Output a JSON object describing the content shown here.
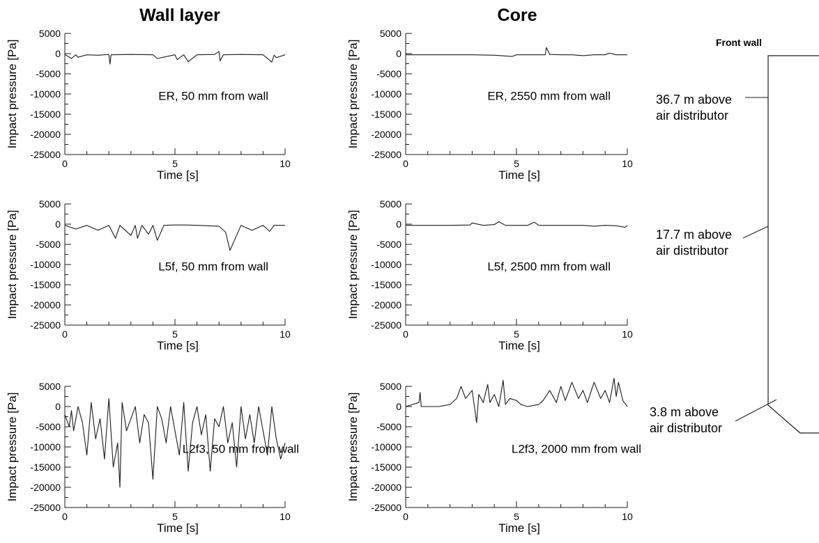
{
  "column_titles": {
    "wall": "Wall layer",
    "core": "Core"
  },
  "furnace": {
    "title": "Front wall",
    "labels": [
      {
        "line1": "36.7 m above",
        "line2": "air distributor"
      },
      {
        "line1": "17.7 m above",
        "line2": "air distributor"
      },
      {
        "line1": "3.8 m above",
        "line2": "air distributor"
      }
    ]
  },
  "chart_data": [
    {
      "type": "line",
      "panel": "wall-1",
      "xlabel": "Time [s]",
      "ylabel": "Impact pressure [Pa]",
      "xlim": [
        0,
        10
      ],
      "ylim": [
        -25000,
        5000
      ],
      "xticks": [
        0,
        5,
        10
      ],
      "yticks": [
        5000,
        0,
        -5000,
        -10000,
        -15000,
        -20000,
        -25000
      ],
      "annotation": "ER, 50 mm from wall",
      "series": [
        {
          "x": [
            0,
            0.3,
            0.5,
            0.6,
            1.0,
            1.5,
            2.0,
            2.05,
            2.1,
            3.0,
            4.0,
            4.2,
            5.0,
            5.1,
            5.4,
            5.6,
            6.0,
            6.8,
            7.0,
            7.05,
            7.2,
            8.0,
            9.0,
            9.4,
            9.5,
            9.6,
            10.0
          ],
          "y": [
            -200,
            -1200,
            -300,
            -900,
            -300,
            -400,
            -200,
            -2600,
            -300,
            -200,
            -300,
            -1200,
            -300,
            -1500,
            -300,
            -2000,
            -300,
            -200,
            500,
            -1800,
            -300,
            -200,
            -300,
            -2100,
            -400,
            -1000,
            -300
          ]
        }
      ]
    },
    {
      "type": "line",
      "panel": "core-1",
      "xlabel": "Time [s]",
      "ylabel": "Impact pressure [Pa]",
      "xlim": [
        0,
        10
      ],
      "ylim": [
        -25000,
        5000
      ],
      "xticks": [
        0,
        5,
        10
      ],
      "yticks": [
        5000,
        0,
        -5000,
        -10000,
        -15000,
        -20000,
        -25000
      ],
      "annotation": "ER, 2550 mm from wall",
      "series": [
        {
          "x": [
            0,
            1,
            2,
            3,
            4,
            4.8,
            5,
            6,
            6.3,
            6.35,
            6.5,
            7,
            7.5,
            8,
            8.5,
            9,
            9.2,
            9.5,
            10
          ],
          "y": [
            -300,
            -300,
            -300,
            -300,
            -400,
            -700,
            -300,
            -300,
            -300,
            1500,
            -200,
            -300,
            -300,
            -500,
            -300,
            -300,
            100,
            -300,
            -300
          ]
        }
      ]
    },
    {
      "type": "line",
      "panel": "wall-2",
      "xlabel": "Time [s]",
      "ylabel": "Impact pressure [Pa]",
      "xlim": [
        0,
        10
      ],
      "ylim": [
        -25000,
        5000
      ],
      "xticks": [
        0,
        5,
        10
      ],
      "yticks": [
        5000,
        0,
        -5000,
        -10000,
        -15000,
        -20000,
        -25000
      ],
      "annotation": "L5f, 50 mm from wall",
      "series": [
        {
          "x": [
            0,
            0.5,
            1.0,
            1.5,
            2.0,
            2.3,
            2.5,
            3.0,
            3.2,
            3.3,
            3.5,
            3.8,
            4.0,
            4.2,
            4.5,
            5.0,
            5.5,
            6.0,
            7.0,
            7.3,
            7.5,
            7.7,
            8.0,
            8.5,
            9.0,
            9.3,
            9.5,
            10.0
          ],
          "y": [
            -300,
            -1200,
            -300,
            -1500,
            -300,
            -3500,
            -300,
            -2800,
            -300,
            -3500,
            -300,
            -2500,
            -300,
            -4000,
            -300,
            -200,
            -200,
            -300,
            -500,
            -2000,
            -6500,
            -4000,
            -300,
            -1500,
            -300,
            -1800,
            -300,
            -300
          ]
        }
      ]
    },
    {
      "type": "line",
      "panel": "core-2",
      "xlabel": "Time [s]",
      "ylabel": "Impact pressure [Pa]",
      "xlim": [
        0,
        10
      ],
      "ylim": [
        -25000,
        5000
      ],
      "xticks": [
        0,
        5,
        10
      ],
      "yticks": [
        5000,
        0,
        -5000,
        -10000,
        -15000,
        -20000,
        -25000
      ],
      "annotation": "L5f, 2500 mm from wall",
      "series": [
        {
          "x": [
            0,
            1,
            2,
            2.9,
            3,
            3.5,
            4,
            4.2,
            4.5,
            5,
            5.5,
            5.8,
            6,
            7,
            8,
            8.5,
            9,
            9.5,
            9.9,
            10
          ],
          "y": [
            -300,
            -300,
            -300,
            -200,
            300,
            -300,
            -100,
            600,
            -300,
            -300,
            -300,
            500,
            -300,
            -300,
            -300,
            -500,
            -300,
            -400,
            -800,
            -300
          ]
        }
      ]
    },
    {
      "type": "line",
      "panel": "wall-3",
      "xlabel": "Time [s]",
      "ylabel": "Impact pressure [Pa]",
      "xlim": [
        0,
        10
      ],
      "ylim": [
        -25000,
        5000
      ],
      "xticks": [
        0,
        5,
        10
      ],
      "yticks": [
        5000,
        0,
        -5000,
        -10000,
        -15000,
        -20000,
        -25000
      ],
      "annotation": "L2f3, 50 mm from wall",
      "series": [
        {
          "x": [
            0,
            0.2,
            0.3,
            0.4,
            0.6,
            0.8,
            1.0,
            1.2,
            1.4,
            1.6,
            1.8,
            2.0,
            2.2,
            2.4,
            2.5,
            2.6,
            2.8,
            3.0,
            3.2,
            3.4,
            3.6,
            3.8,
            4.0,
            4.2,
            4.4,
            4.6,
            4.8,
            5.0,
            5.2,
            5.4,
            5.6,
            5.8,
            6.0,
            6.2,
            6.4,
            6.6,
            6.8,
            7.0,
            7.2,
            7.4,
            7.6,
            7.8,
            8.0,
            8.2,
            8.4,
            8.6,
            8.8,
            9.0,
            9.2,
            9.4,
            9.6,
            9.8,
            10.0
          ],
          "y": [
            -2000,
            -5000,
            -1000,
            -6000,
            0,
            -4000,
            -12000,
            1000,
            -8000,
            -3000,
            -13000,
            2000,
            -15000,
            -9000,
            -20000,
            1000,
            -6000,
            -3000,
            0,
            -9000,
            -2000,
            -4000,
            -18000,
            0,
            -3000,
            -9000,
            0,
            -6000,
            -12000,
            1000,
            -16000,
            -4000,
            0,
            -7000,
            -2000,
            -16000,
            -3000,
            -5000,
            0,
            -9000,
            -4000,
            -15000,
            0,
            -8000,
            -2000,
            -9000,
            0,
            -6000,
            -12000,
            0,
            -8000,
            -13000,
            -9000
          ]
        }
      ]
    },
    {
      "type": "line",
      "panel": "core-3",
      "xlabel": "Time [s]",
      "ylabel": "Impact pressure [Pa]",
      "xlim": [
        0,
        10
      ],
      "ylim": [
        -25000,
        5000
      ],
      "xticks": [
        0,
        5,
        10
      ],
      "yticks": [
        5000,
        0,
        -5000,
        -10000,
        -15000,
        -20000,
        -25000
      ],
      "annotation": "L2f3, 2000 mm from wall",
      "series": [
        {
          "x": [
            0,
            0.3,
            0.6,
            0.65,
            0.7,
            1.0,
            1.5,
            2.0,
            2.3,
            2.5,
            2.7,
            3.0,
            3.2,
            3.3,
            3.5,
            3.7,
            3.8,
            4.0,
            4.2,
            4.4,
            4.5,
            4.7,
            5.0,
            5.2,
            5.5,
            6.0,
            6.2,
            6.5,
            6.8,
            7.0,
            7.2,
            7.5,
            7.8,
            8.0,
            8.2,
            8.5,
            8.8,
            9.0,
            9.2,
            9.4,
            9.5,
            9.6,
            9.8,
            10.0
          ],
          "y": [
            0,
            500,
            1000,
            3500,
            0,
            0,
            0,
            500,
            2000,
            5000,
            2000,
            4000,
            -4000,
            3000,
            1000,
            5500,
            1000,
            3000,
            0,
            6500,
            500,
            2000,
            1500,
            500,
            0,
            500,
            1500,
            4000,
            1000,
            5000,
            1500,
            6000,
            2000,
            4000,
            1000,
            6000,
            2000,
            4000,
            1000,
            7000,
            2500,
            6000,
            1500,
            0
          ]
        }
      ]
    }
  ]
}
